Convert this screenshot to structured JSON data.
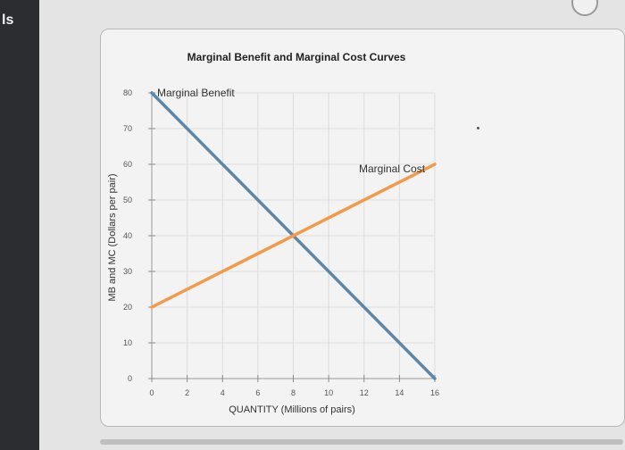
{
  "sidebar": {
    "fragment_text": "ls"
  },
  "chart_data": {
    "type": "line",
    "title": "Marginal Benefit and Marginal Cost Curves",
    "xlabel": "QUANTITY (Millions of pairs)",
    "ylabel": "MB and MC (Dollars per pair)",
    "xlim": [
      0,
      16
    ],
    "ylim": [
      0,
      80
    ],
    "x_ticks": [
      0,
      2,
      4,
      6,
      8,
      10,
      12,
      14,
      16
    ],
    "y_ticks": [
      0,
      10,
      20,
      30,
      40,
      50,
      60,
      70,
      80
    ],
    "grid": true,
    "series": [
      {
        "name": "Marginal Benefit",
        "color": "#5b87a8",
        "x": [
          0,
          16
        ],
        "y": [
          80,
          0
        ]
      },
      {
        "name": "Marginal Cost",
        "color": "#f29a4a",
        "x": [
          0,
          16
        ],
        "y": [
          20,
          60
        ]
      }
    ]
  }
}
